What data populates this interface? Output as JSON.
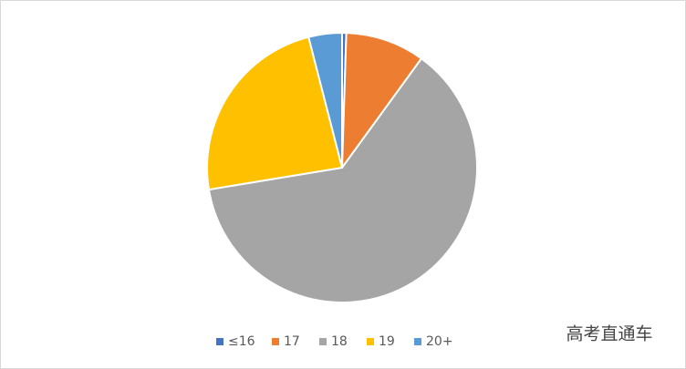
{
  "chart_data": {
    "type": "pie",
    "categories": [
      "≤16",
      "17",
      "18",
      "19",
      "20+"
    ],
    "values": [
      0.5,
      9.5,
      62.4,
      23.6,
      4
    ],
    "colors": [
      "#4472c4",
      "#ed7d31",
      "#a5a5a5",
      "#ffc000",
      "#5b9bd5"
    ],
    "legend": "bottom"
  },
  "watermark": "高考直通车"
}
